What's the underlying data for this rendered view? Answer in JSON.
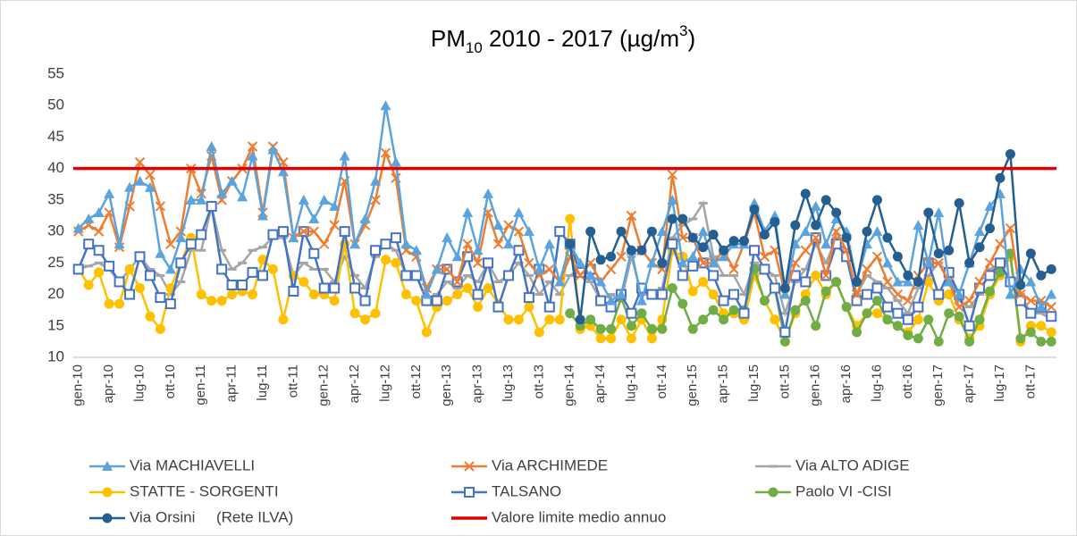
{
  "chart_data": {
    "type": "line",
    "title": [
      {
        "text": "PM"
      },
      {
        "text": "10",
        "shift": "sub"
      },
      {
        "text": " 2010 - 2017 (µg/m"
      },
      {
        "text": "3",
        "shift": "sup"
      },
      {
        "text": ")"
      }
    ],
    "categories": [
      "gen-10",
      null,
      null,
      "apr-10",
      null,
      null,
      "lug-10",
      null,
      null,
      "ott-10",
      null,
      null,
      "gen-11",
      null,
      null,
      "apr-11",
      null,
      null,
      "lug-11",
      null,
      null,
      "ott-11",
      null,
      null,
      "gen-12",
      null,
      null,
      "apr-12",
      null,
      null,
      "lug-12",
      null,
      null,
      "ott-12",
      null,
      null,
      "gen-13",
      null,
      null,
      "apr-13",
      null,
      null,
      "lug-13",
      null,
      null,
      "ott-13",
      null,
      null,
      "gen-14",
      null,
      null,
      "apr-14",
      null,
      null,
      "lug-14",
      null,
      null,
      "ott-14",
      null,
      null,
      "gen-15",
      null,
      null,
      "apr-15",
      null,
      null,
      "lug-15",
      null,
      null,
      "ott-15",
      null,
      null,
      "gen-16",
      null,
      null,
      "apr-16",
      null,
      null,
      "lug-16",
      null,
      null,
      "ott-16",
      null,
      null,
      "gen-17",
      null,
      null,
      "apr-17",
      null,
      null,
      "lug-17",
      null,
      null,
      "ott-17",
      null,
      null
    ],
    "ylim": [
      10,
      55
    ],
    "yticks": [
      10,
      15,
      20,
      25,
      30,
      35,
      40,
      45,
      50,
      55
    ],
    "grid": false,
    "legend": "bottom",
    "series": [
      {
        "name": "Via ALTO ADIGE",
        "color": "#a5a5a5",
        "marker": "dash",
        "values": [
          24,
          24.5,
          25,
          24,
          22,
          24,
          26,
          24,
          23,
          20,
          22,
          27,
          27,
          34,
          27,
          24,
          25,
          27,
          27.5,
          29,
          29,
          23,
          25,
          24,
          24,
          22,
          26,
          23,
          21,
          26,
          28,
          27,
          23,
          23,
          19,
          20,
          22,
          21,
          23,
          22,
          25,
          22,
          23,
          25,
          23,
          20,
          22,
          20,
          23,
          24,
          22,
          19,
          20,
          19,
          26,
          20,
          20,
          21,
          29,
          31,
          32,
          34.5,
          26,
          23,
          23,
          20,
          25,
          24,
          23,
          17,
          22,
          24,
          28,
          25,
          29,
          26,
          20,
          23,
          22,
          21,
          19,
          17,
          21,
          23,
          25,
          22,
          19,
          18,
          20,
          24,
          25,
          22,
          20,
          17,
          17,
          16
        ]
      },
      {
        "name": "STATTE - SORGENTI",
        "color": "#ffc000",
        "marker": "circle",
        "values": [
          24,
          21.5,
          23.5,
          18.5,
          18.5,
          24,
          21,
          16.5,
          14.5,
          21,
          25,
          29,
          20,
          19,
          19,
          20,
          20.5,
          20,
          25.5,
          24,
          16,
          23,
          22,
          20,
          20,
          19,
          28,
          17,
          16,
          17,
          25.5,
          25,
          20,
          19,
          14,
          18,
          19,
          20,
          21,
          18,
          21,
          18.5,
          16,
          16,
          18,
          14,
          16,
          16,
          32,
          14.5,
          15,
          13,
          13,
          16,
          13,
          16,
          13,
          16,
          27,
          26,
          20.5,
          22,
          20,
          17,
          17,
          16,
          23,
          19,
          16,
          12.5,
          17,
          20,
          23,
          20,
          22,
          18,
          15,
          17,
          17,
          16,
          15,
          14,
          16,
          22,
          19,
          20,
          16,
          13,
          15,
          20,
          23,
          26,
          12.5,
          15,
          15,
          14
        ]
      },
      {
        "name": "Paolo VI -CISI",
        "color": "#70ad47",
        "marker": "circle",
        "values": [
          null,
          null,
          null,
          null,
          null,
          null,
          null,
          null,
          null,
          null,
          null,
          null,
          null,
          null,
          null,
          null,
          null,
          null,
          null,
          null,
          null,
          null,
          null,
          null,
          null,
          null,
          null,
          null,
          null,
          null,
          null,
          null,
          null,
          null,
          null,
          null,
          null,
          null,
          null,
          null,
          null,
          null,
          null,
          null,
          null,
          null,
          null,
          null,
          17,
          15,
          16,
          14.5,
          14.5,
          19.5,
          15,
          17,
          14.5,
          14.5,
          21,
          18.5,
          14.5,
          16,
          17.5,
          16,
          17.5,
          17.5,
          24,
          19,
          21,
          12.5,
          17.5,
          19,
          15,
          20.5,
          22,
          18,
          14,
          17,
          19,
          16,
          15,
          13.5,
          13,
          16,
          12.5,
          17,
          16.5,
          12.5,
          16,
          20.5,
          23.5,
          26.5,
          13,
          14,
          12.5,
          12.5
        ]
      },
      {
        "name": "TALSANO",
        "color": "#4472c4",
        "marker": "square",
        "values": [
          24,
          28,
          27,
          24.5,
          22,
          20,
          26,
          23,
          19.5,
          18.5,
          25,
          28,
          29.5,
          34,
          24,
          21.5,
          21.5,
          23.5,
          23,
          29.5,
          30,
          20.5,
          30,
          26.5,
          21,
          21,
          30,
          21,
          19,
          27,
          28,
          29,
          23,
          23,
          19,
          19,
          24,
          22,
          26,
          20,
          25,
          18,
          23,
          27,
          19.5,
          24,
          18,
          30,
          28,
          23.5,
          24,
          19,
          18,
          20,
          17,
          21,
          20,
          20,
          28,
          23,
          24.5,
          25,
          23,
          19,
          20,
          17,
          27,
          24,
          21,
          14,
          23,
          22,
          29,
          23,
          28,
          26,
          19,
          20,
          21,
          18,
          17,
          16,
          18,
          25,
          20,
          23.5,
          20,
          15,
          21,
          23,
          25,
          22,
          19,
          17,
          18,
          16.5
        ]
      },
      {
        "name": "Via ARCHIMEDE",
        "color": "#ed7d31",
        "marker": "x",
        "values": [
          30,
          31,
          30,
          33,
          27.5,
          34,
          41,
          39,
          34,
          28,
          30,
          40,
          36,
          42,
          35,
          38,
          40,
          43.5,
          33,
          43.5,
          41,
          29,
          30,
          30,
          28,
          31,
          38,
          28,
          31,
          35,
          42.5,
          38.5,
          27,
          26,
          21,
          24,
          24,
          22,
          28,
          25,
          33,
          28,
          31,
          30,
          25,
          23,
          24,
          22,
          26,
          23,
          25,
          22,
          24,
          26,
          32.5,
          27,
          25,
          24,
          39,
          29,
          29,
          25,
          25,
          27,
          24,
          28,
          33,
          26,
          27,
          20,
          25,
          27,
          29,
          23,
          30,
          27,
          20,
          24,
          26,
          22,
          20,
          19,
          23,
          25,
          25,
          22,
          18,
          19,
          22,
          25,
          28,
          30.5,
          20,
          19,
          19,
          18
        ]
      },
      {
        "name": "Via MACHIAVELLI",
        "color": "#5ba3dc",
        "marker": "triangle",
        "values": [
          30.5,
          32,
          33,
          36,
          28,
          37,
          38,
          37,
          26.5,
          24,
          29,
          35,
          35,
          43.5,
          36,
          38,
          35.5,
          42,
          32.5,
          43,
          39.5,
          29,
          35,
          32,
          35,
          34,
          42,
          28,
          32,
          38,
          50,
          41,
          28,
          27,
          20,
          24,
          29,
          26,
          33,
          27,
          36,
          31,
          28,
          33,
          30,
          24,
          28,
          22,
          28,
          25,
          23,
          22,
          19,
          20,
          27,
          19,
          25,
          30,
          35,
          25,
          26,
          30,
          25,
          26,
          28,
          28,
          34.5,
          30,
          32.5,
          20,
          28,
          30,
          34,
          28,
          32,
          30,
          22,
          28,
          30,
          25,
          22,
          22,
          31,
          25,
          33,
          22,
          20,
          25,
          30,
          34,
          36,
          20,
          24,
          22,
          18,
          20
        ]
      },
      {
        "name": "Via Orsini     (Rete ILVA)",
        "color": "#255e91",
        "marker": "circle",
        "values": [
          null,
          null,
          null,
          null,
          null,
          null,
          null,
          null,
          null,
          null,
          null,
          null,
          null,
          null,
          null,
          null,
          null,
          null,
          null,
          null,
          null,
          null,
          null,
          null,
          null,
          null,
          null,
          null,
          null,
          null,
          null,
          null,
          null,
          null,
          null,
          null,
          null,
          null,
          null,
          null,
          null,
          null,
          null,
          null,
          null,
          null,
          null,
          null,
          28,
          16,
          30,
          25.5,
          26,
          30,
          27,
          27,
          30,
          25,
          32,
          32,
          29,
          27.5,
          29.5,
          27,
          28.5,
          28.5,
          33.5,
          29.5,
          31.5,
          21,
          31,
          36,
          31,
          35,
          33,
          29,
          22,
          30,
          35,
          29,
          26,
          23,
          22,
          33,
          26.5,
          27,
          34.5,
          25,
          27.5,
          30.5,
          38.5,
          42.3,
          21.5,
          26.5,
          23,
          24
        ]
      }
    ],
    "reference_line": {
      "name": "Valore limite medio annuo",
      "color": "#e00000",
      "value": 40
    },
    "legend_order": [
      5,
      4,
      0,
      1,
      3,
      2,
      6
    ]
  }
}
